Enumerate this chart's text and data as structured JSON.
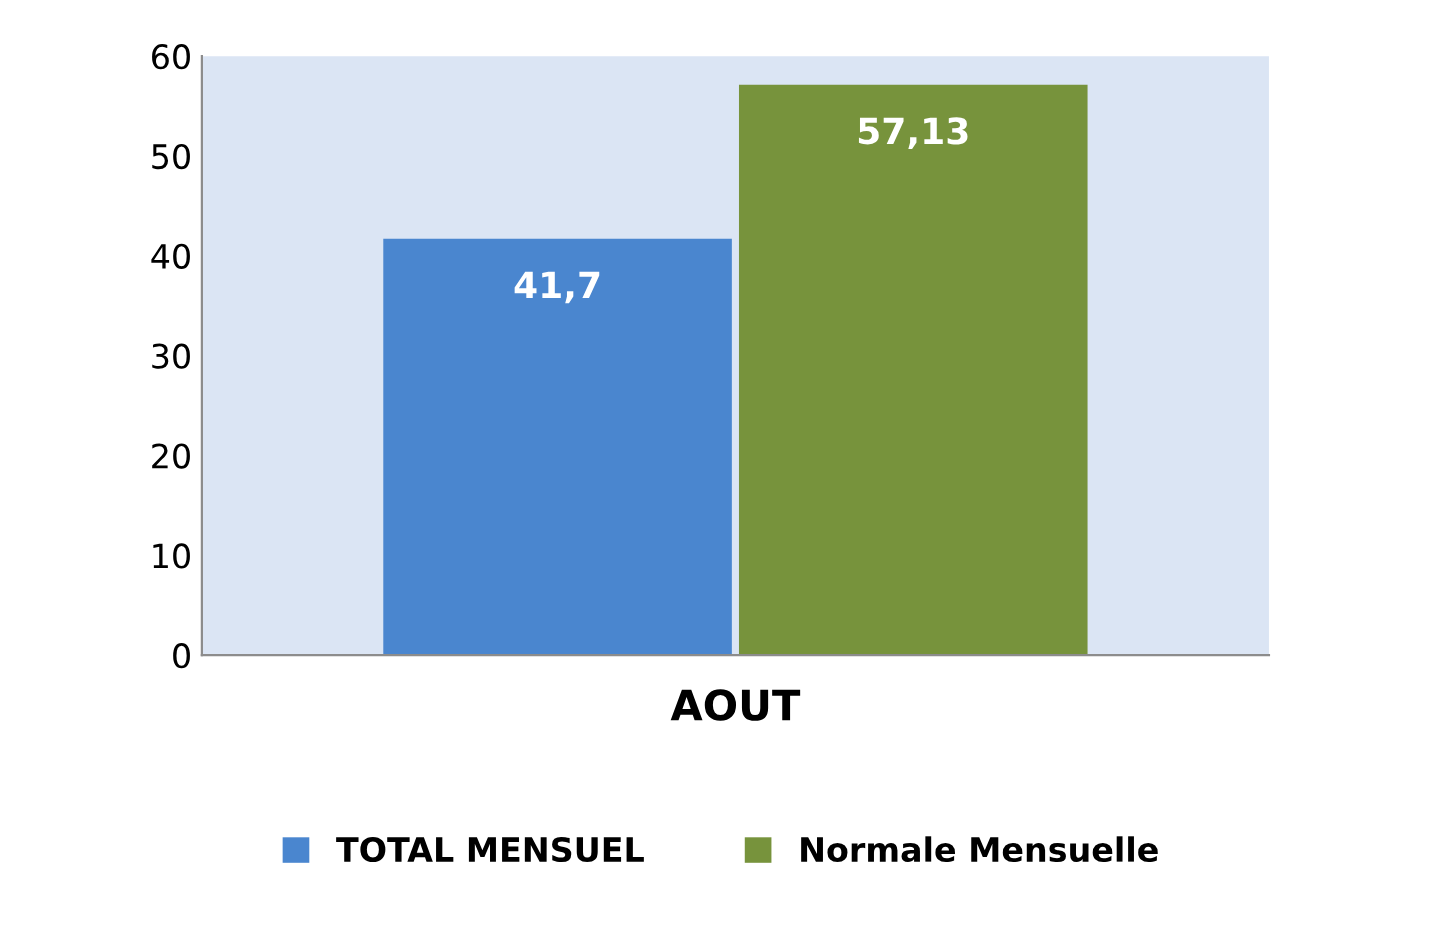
{
  "chart_data": {
    "type": "bar",
    "categories": [
      "AOUT"
    ],
    "series": [
      {
        "name": "TOTAL MENSUEL",
        "color": "#4a86cf",
        "values": [
          41.7
        ],
        "value_labels": [
          "41,7"
        ]
      },
      {
        "name": "Normale Mensuelle",
        "color": "#77933c",
        "values": [
          57.13
        ],
        "value_labels": [
          "57,13"
        ]
      }
    ],
    "ylim": [
      0,
      60
    ],
    "yticks": [
      0,
      10,
      20,
      30,
      40,
      50,
      60
    ],
    "grid": false,
    "legend": "bottom"
  }
}
